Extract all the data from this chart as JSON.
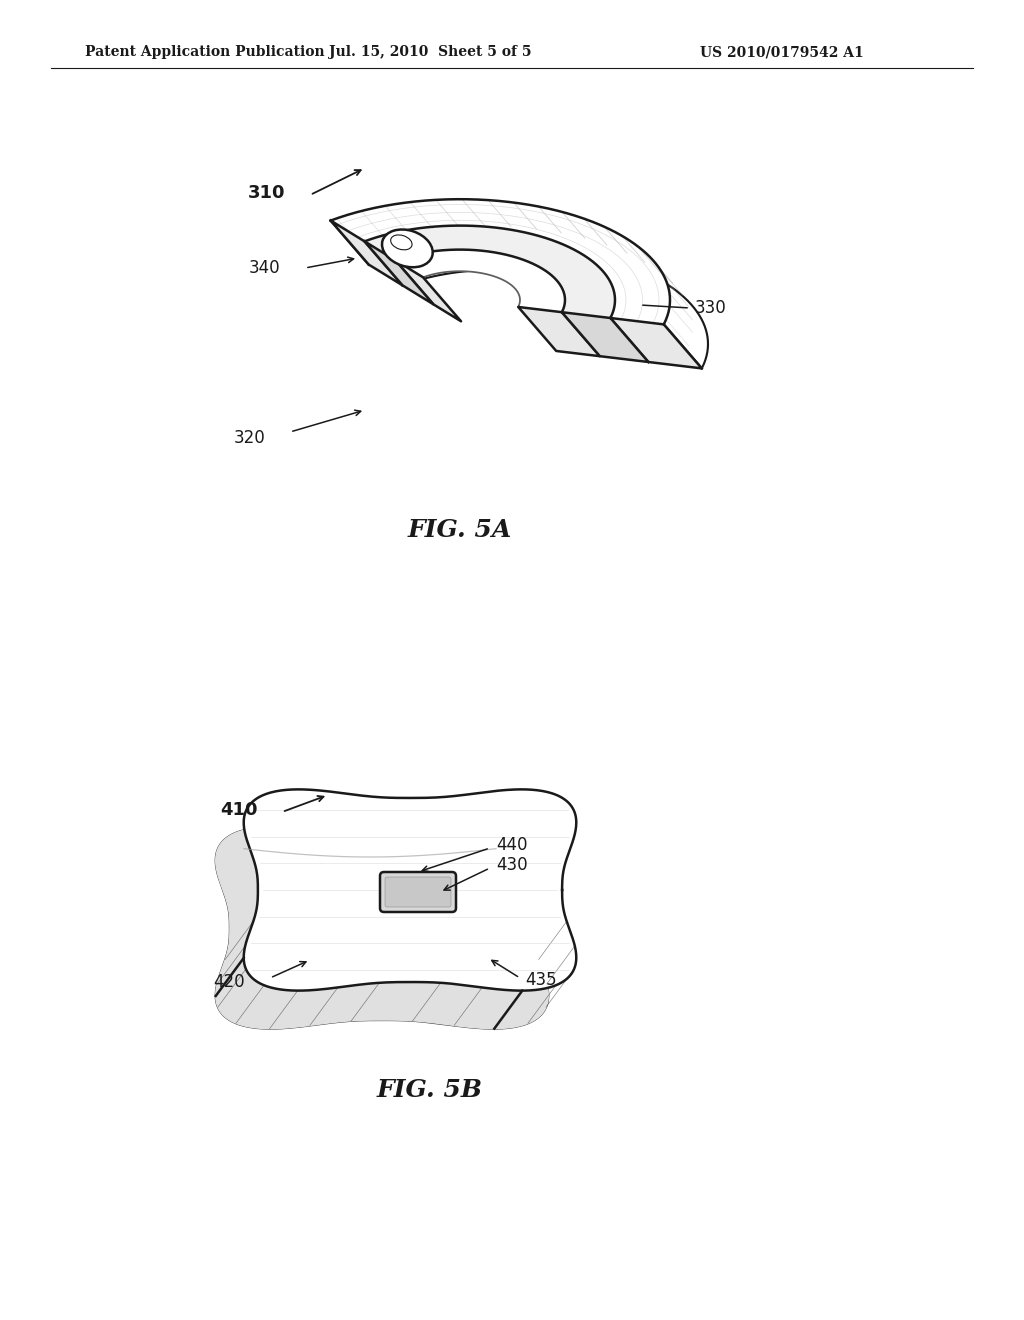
{
  "bg_color": "#ffffff",
  "header_left": "Patent Application Publication",
  "header_center": "Jul. 15, 2010  Sheet 5 of 5",
  "header_right": "US 2010/0179542 A1",
  "fig5a_label": "FIG. 5A",
  "fig5b_label": "FIG. 5B",
  "line_color": "#1a1a1a",
  "gray_light": "#cccccc",
  "gray_mid": "#aaaaaa",
  "gray_dark": "#777777"
}
